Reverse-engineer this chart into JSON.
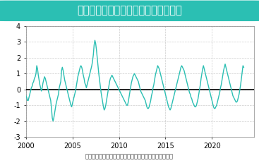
{
  "title": "エルニーニョ監視海域の基準値との差",
  "title_bg_color": "#2bbfb3",
  "title_text_color": "#ffffff",
  "xlabel": "（出所：気象庁より住友商事グローバルリサーチ作成）",
  "line_color": "#2bbfb3",
  "zero_line_color": "#000000",
  "grid_color": "#cccccc",
  "bg_color": "#ffffff",
  "ylim": [
    -3,
    4
  ],
  "yticks": [
    -3,
    -2,
    -1,
    0,
    1,
    2,
    3,
    4
  ],
  "xlim_start": 2000,
  "xlim_end": 2024.5,
  "xticks": [
    2000,
    2005,
    2010,
    2015,
    2020
  ],
  "values": [
    -0.4,
    -0.5,
    -0.7,
    -0.7,
    -0.5,
    -0.3,
    -0.1,
    0.1,
    0.2,
    0.4,
    0.5,
    0.7,
    0.8,
    1.0,
    1.5,
    1.3,
    0.9,
    0.6,
    0.3,
    0.1,
    -0.1,
    0.1,
    0.4,
    0.6,
    0.8,
    0.7,
    0.5,
    0.3,
    0.1,
    -0.1,
    -0.3,
    -0.5,
    -0.7,
    -1.2,
    -1.8,
    -2.0,
    -1.8,
    -1.5,
    -1.2,
    -0.9,
    -0.7,
    -0.5,
    -0.3,
    0.1,
    0.3,
    0.5,
    1.2,
    1.4,
    1.2,
    0.9,
    0.6,
    0.4,
    0.2,
    0.0,
    -0.2,
    -0.4,
    -0.6,
    -0.8,
    -1.0,
    -1.1,
    -0.9,
    -0.7,
    -0.5,
    -0.3,
    -0.1,
    0.2,
    0.5,
    0.8,
    1.0,
    1.2,
    1.4,
    1.5,
    1.4,
    1.2,
    0.9,
    0.7,
    0.4,
    0.3,
    0.1,
    0.3,
    0.5,
    0.7,
    0.9,
    1.1,
    1.3,
    1.5,
    1.8,
    2.2,
    2.8,
    3.1,
    2.9,
    2.5,
    2.0,
    1.5,
    1.0,
    0.6,
    0.2,
    -0.2,
    -0.5,
    -0.8,
    -1.1,
    -1.3,
    -1.2,
    -1.0,
    -0.7,
    -0.4,
    -0.1,
    0.2,
    0.5,
    0.7,
    0.8,
    0.9,
    0.8,
    0.7,
    0.6,
    0.5,
    0.4,
    0.3,
    0.2,
    0.1,
    0.0,
    -0.1,
    -0.2,
    -0.3,
    -0.4,
    -0.5,
    -0.6,
    -0.7,
    -0.8,
    -0.9,
    -1.0,
    -1.0,
    -0.8,
    -0.5,
    -0.2,
    0.1,
    0.4,
    0.6,
    0.8,
    0.9,
    1.0,
    0.9,
    0.8,
    0.7,
    0.6,
    0.5,
    0.3,
    0.1,
    -0.1,
    -0.2,
    -0.3,
    -0.4,
    -0.5,
    -0.6,
    -0.7,
    -0.9,
    -1.1,
    -1.2,
    -1.2,
    -1.1,
    -0.9,
    -0.7,
    -0.4,
    -0.2,
    0.1,
    0.3,
    0.6,
    0.9,
    1.1,
    1.3,
    1.5,
    1.4,
    1.3,
    1.1,
    0.9,
    0.7,
    0.5,
    0.3,
    0.1,
    -0.1,
    -0.3,
    -0.5,
    -0.7,
    -0.9,
    -1.1,
    -1.2,
    -1.3,
    -1.2,
    -1.0,
    -0.8,
    -0.6,
    -0.4,
    -0.2,
    0.0,
    0.2,
    0.4,
    0.6,
    0.8,
    1.0,
    1.2,
    1.4,
    1.5,
    1.4,
    1.3,
    1.2,
    1.0,
    0.8,
    0.6,
    0.4,
    0.2,
    0.0,
    -0.2,
    -0.3,
    -0.5,
    -0.6,
    -0.8,
    -0.9,
    -1.0,
    -1.1,
    -1.1,
    -1.0,
    -0.8,
    -0.6,
    -0.3,
    0.0,
    0.3,
    0.7,
    1.0,
    1.3,
    1.5,
    1.3,
    1.1,
    0.9,
    0.7,
    0.5,
    0.3,
    0.1,
    -0.1,
    -0.3,
    -0.5,
    -0.7,
    -0.9,
    -1.1,
    -1.2,
    -1.2,
    -1.1,
    -1.0,
    -0.8,
    -0.6,
    -0.4,
    -0.2,
    0.1,
    0.3,
    0.6,
    0.9,
    1.2,
    1.4,
    1.6,
    1.4,
    1.2,
    1.0,
    0.8,
    0.6,
    0.4,
    0.2,
    0.0,
    -0.2,
    -0.4,
    -0.5,
    -0.6,
    -0.7,
    -0.8,
    -0.8,
    -0.7,
    -0.5,
    -0.3,
    0.0,
    0.3,
    0.7,
    1.1,
    1.5,
    1.4
  ]
}
